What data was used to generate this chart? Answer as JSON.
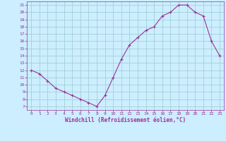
{
  "x": [
    0,
    1,
    2,
    3,
    4,
    5,
    6,
    7,
    8,
    9,
    10,
    11,
    12,
    13,
    14,
    15,
    16,
    17,
    18,
    19,
    20,
    21,
    22,
    23
  ],
  "y": [
    12,
    11.5,
    10.5,
    9.5,
    9,
    8.5,
    8,
    7.5,
    7,
    8.5,
    11,
    13.5,
    15.5,
    16.5,
    17.5,
    18,
    19.5,
    20,
    21,
    21,
    20,
    19.5,
    16,
    14
  ],
  "line_color": "#993399",
  "marker": "+",
  "marker_size": 3,
  "marker_color": "#993399",
  "bg_color": "#cceeff",
  "grid_color": "#99cccc",
  "xlabel": "Windchill (Refroidissement éolien,°C)",
  "xlabel_color": "#993399",
  "tick_color": "#993399",
  "xlim": [
    -0.5,
    23.5
  ],
  "ylim": [
    6.5,
    21.5
  ],
  "xticks": [
    0,
    1,
    2,
    3,
    4,
    5,
    6,
    7,
    8,
    9,
    10,
    11,
    12,
    13,
    14,
    15,
    16,
    17,
    18,
    19,
    20,
    21,
    22,
    23
  ],
  "yticks": [
    7,
    8,
    9,
    10,
    11,
    12,
    13,
    14,
    15,
    16,
    17,
    18,
    19,
    20,
    21
  ]
}
